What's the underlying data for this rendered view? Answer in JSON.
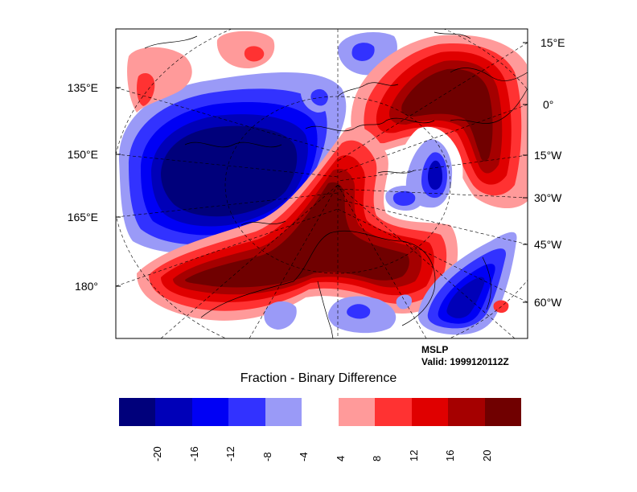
{
  "map": {
    "lon_labels_left": [
      "135°E",
      "150°E",
      "165°E",
      "180°"
    ],
    "lon_labels_right": [
      "15°E",
      "0°",
      "15°W",
      "30°W",
      "45°W",
      "60°W"
    ]
  },
  "info": {
    "variable": "MSLP",
    "valid": "Valid: 1999120112Z"
  },
  "colorbar": {
    "title": "Fraction - Binary Difference",
    "tick_labels": [
      "-20",
      "-16",
      "-12",
      "-8",
      "-4",
      "4",
      "8",
      "12",
      "16",
      "20"
    ],
    "colors": [
      "#00007b",
      "#0000b8",
      "#0000f5",
      "#3232ff",
      "#9a9af7",
      "#ffffff",
      "#ff9a9a",
      "#ff3232",
      "#e00000",
      "#a50000",
      "#700000"
    ]
  }
}
